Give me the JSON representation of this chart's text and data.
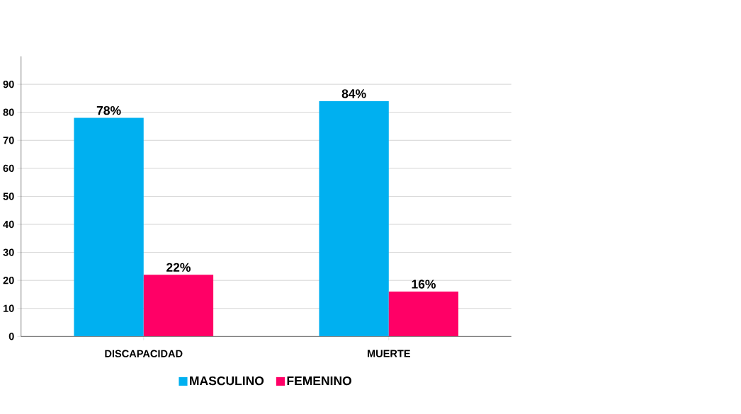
{
  "chart_data": {
    "type": "bar",
    "categories": [
      "DISCAPACIDAD",
      "MUERTE"
    ],
    "series": [
      {
        "name": "MASCULINO",
        "color": "#00b0f0",
        "values": [
          78,
          84
        ],
        "value_labels": [
          "78%",
          "84%"
        ]
      },
      {
        "name": "FEMENINO",
        "color": "#ff0066",
        "values": [
          22,
          16
        ],
        "value_labels": [
          "22%",
          "16%"
        ]
      }
    ],
    "ylim": [
      0,
      100
    ],
    "yticks": [
      0,
      10,
      20,
      30,
      40,
      50,
      60,
      70,
      80,
      90
    ],
    "grid": "y",
    "legend": "bottom"
  }
}
